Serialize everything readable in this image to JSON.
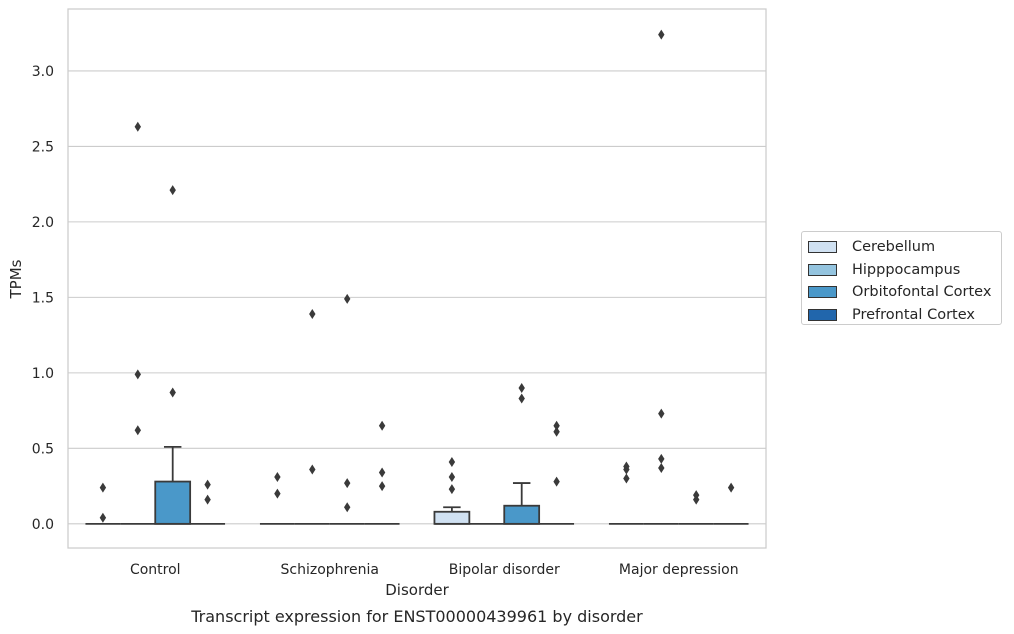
{
  "chart_data": {
    "type": "box",
    "title": "",
    "caption": "Transcript expression for ENST00000439961 by disorder",
    "xlabel": "Disorder",
    "ylabel": "TPMs",
    "ylim": [
      -0.16,
      3.41
    ],
    "yticks": [
      "0.0",
      "0.5",
      "1.0",
      "1.5",
      "2.0",
      "2.5",
      "3.0"
    ],
    "grid": true,
    "legend_position": "right, outside plot",
    "categories": [
      "Control",
      "Schizophrenia",
      "Bipolar disorder",
      "Major depression"
    ],
    "series": [
      {
        "name": "Cerebellum",
        "color": "#d0e1f2",
        "boxes": [
          {
            "min": 0,
            "q1": 0,
            "median": 0,
            "q3": 0,
            "max": 0,
            "outliers": [
              0.04,
              0.24
            ]
          },
          {
            "min": 0,
            "q1": 0,
            "median": 0,
            "q3": 0,
            "max": 0,
            "outliers": [
              0.2,
              0.31
            ]
          },
          {
            "min": 0,
            "q1": 0,
            "median": 0,
            "q3": 0.08,
            "max": 0.11,
            "outliers": [
              0.23,
              0.31,
              0.41
            ]
          },
          {
            "min": 0,
            "q1": 0,
            "median": 0,
            "q3": 0,
            "max": 0,
            "outliers": [
              0.3,
              0.36,
              0.38
            ]
          }
        ]
      },
      {
        "name": "Hipppocampus",
        "color": "#94c4df",
        "boxes": [
          {
            "min": 0,
            "q1": 0,
            "median": 0,
            "q3": 0,
            "max": 0,
            "outliers": [
              0.62,
              0.99,
              2.63
            ]
          },
          {
            "min": 0,
            "q1": 0,
            "median": 0,
            "q3": 0,
            "max": 0,
            "outliers": [
              0.36,
              1.39
            ]
          },
          {
            "min": 0,
            "q1": 0,
            "median": 0,
            "q3": 0,
            "max": 0,
            "outliers": []
          },
          {
            "min": 0,
            "q1": 0,
            "median": 0,
            "q3": 0,
            "max": 0,
            "outliers": [
              0.37,
              0.43,
              0.73,
              3.24
            ]
          }
        ]
      },
      {
        "name": "Orbitofontal Cortex",
        "color": "#4a98c9",
        "boxes": [
          {
            "min": 0,
            "q1": 0,
            "median": 0,
            "q3": 0.28,
            "max": 0.51,
            "outliers": [
              0.87,
              2.21
            ]
          },
          {
            "min": 0,
            "q1": 0,
            "median": 0,
            "q3": 0,
            "max": 0,
            "outliers": [
              0.11,
              0.27,
              1.49
            ]
          },
          {
            "min": 0,
            "q1": 0,
            "median": 0,
            "q3": 0.12,
            "max": 0.27,
            "outliers": [
              0.83,
              0.9
            ]
          },
          {
            "min": 0,
            "q1": 0,
            "median": 0,
            "q3": 0,
            "max": 0,
            "outliers": [
              0.16,
              0.19
            ]
          }
        ]
      },
      {
        "name": "Prefrontal Cortex",
        "color": "#2166ac",
        "boxes": [
          {
            "min": 0,
            "q1": 0,
            "median": 0,
            "q3": 0,
            "max": 0,
            "outliers": [
              0.16,
              0.26
            ]
          },
          {
            "min": 0,
            "q1": 0,
            "median": 0,
            "q3": 0,
            "max": 0,
            "outliers": [
              0.25,
              0.34,
              0.65
            ]
          },
          {
            "min": 0,
            "q1": 0,
            "median": 0,
            "q3": 0,
            "max": 0,
            "outliers": [
              0.28,
              0.61,
              0.65
            ]
          },
          {
            "min": 0,
            "q1": 0,
            "median": 0,
            "q3": 0,
            "max": 0,
            "outliers": [
              0.24
            ]
          }
        ]
      }
    ]
  }
}
